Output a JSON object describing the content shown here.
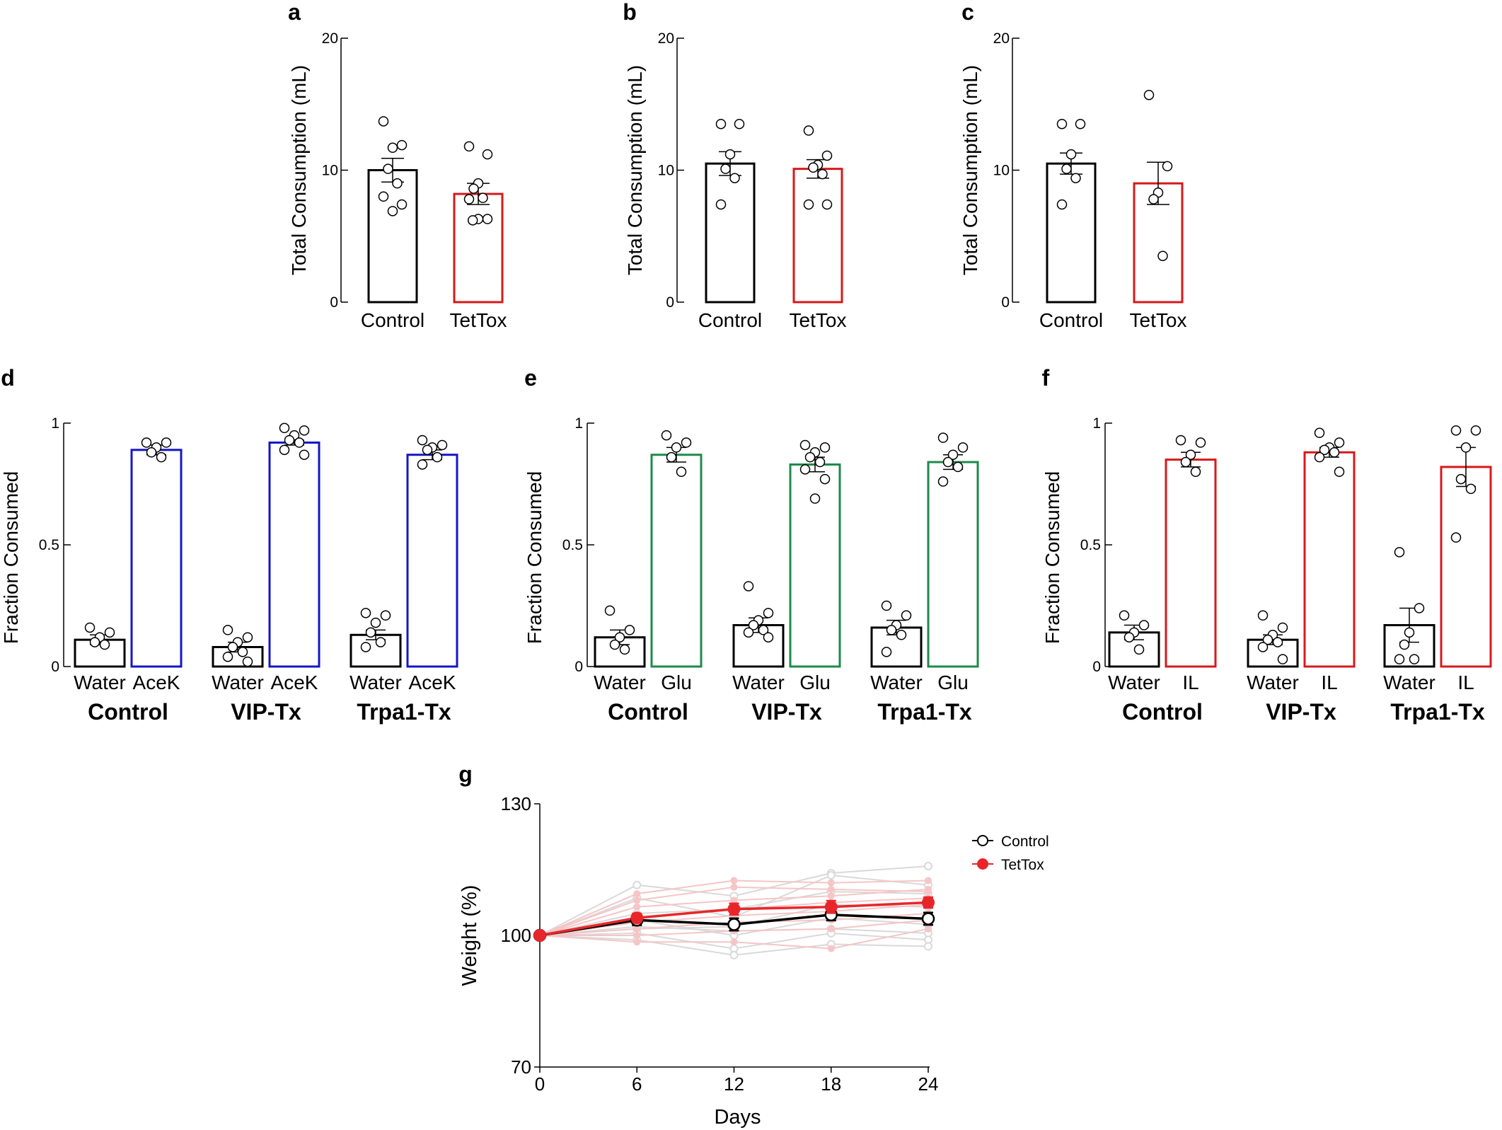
{
  "chart_data": [
    {
      "id": "a",
      "type": "bar",
      "panel": "a",
      "ylabel": "Total Consumption (mL)",
      "ylim": [
        0,
        20
      ],
      "yticks": [
        0,
        10,
        20
      ],
      "ytick_labels": [
        "0",
        "10",
        "20"
      ],
      "categories": [
        "Control",
        "TetTox"
      ],
      "bars": [
        {
          "label": "Control",
          "value": 10.0,
          "sem": 0.9,
          "color": "#000000",
          "points": [
            13.7,
            11.9,
            11.7,
            10.1,
            9.0,
            8.0,
            7.4,
            6.9
          ]
        },
        {
          "label": "TetTox",
          "value": 8.2,
          "sem": 0.8,
          "color": "#d7191c",
          "points": [
            11.8,
            11.2,
            9.0,
            8.6,
            7.9,
            7.8,
            6.3,
            6.3,
            6.2
          ]
        }
      ]
    },
    {
      "id": "b",
      "type": "bar",
      "panel": "b",
      "ylabel": "Total Consumption (mL)",
      "ylim": [
        0,
        20
      ],
      "yticks": [
        0,
        10,
        20
      ],
      "ytick_labels": [
        "0",
        "10",
        "20"
      ],
      "categories": [
        "Control",
        "TetTox"
      ],
      "bars": [
        {
          "label": "Control",
          "value": 10.5,
          "sem": 0.9,
          "color": "#000000",
          "points": [
            13.5,
            13.5,
            11.2,
            10.1,
            9.4,
            7.4
          ]
        },
        {
          "label": "TetTox",
          "value": 10.1,
          "sem": 0.7,
          "color": "#d7191c",
          "points": [
            13.0,
            11.1,
            10.4,
            10.2,
            9.7,
            7.4,
            7.4
          ]
        }
      ]
    },
    {
      "id": "c",
      "type": "bar",
      "panel": "c",
      "ylabel": "Total Consumption (mL)",
      "ylim": [
        0,
        20
      ],
      "yticks": [
        0,
        10,
        20
      ],
      "ytick_labels": [
        "0",
        "10",
        "20"
      ],
      "categories": [
        "Control",
        "TetTox"
      ],
      "bars": [
        {
          "label": "Control",
          "value": 10.5,
          "sem": 0.8,
          "color": "#000000",
          "points": [
            13.5,
            13.5,
            11.2,
            10.1,
            9.4,
            7.4
          ]
        },
        {
          "label": "TetTox",
          "value": 9.0,
          "sem": 1.6,
          "color": "#d7191c",
          "points": [
            15.7,
            10.3,
            8.3,
            7.8,
            3.5
          ]
        }
      ]
    },
    {
      "id": "d",
      "type": "bar",
      "panel": "d",
      "ylabel": "Fraction Consumed",
      "ylim": [
        0,
        1
      ],
      "yticks": [
        0,
        0.5,
        1
      ],
      "ytick_labels": [
        "0",
        "0.5",
        "1"
      ],
      "groups": [
        "Control",
        "VIP-Tx",
        "Trpa1-Tx"
      ],
      "bars": [
        {
          "group": "Control",
          "label": "Water",
          "value": 0.11,
          "sem": 0.02,
          "color": "#000000",
          "points": [
            0.16,
            0.14,
            0.12,
            0.1,
            0.09
          ]
        },
        {
          "group": "Control",
          "label": "AceK",
          "value": 0.89,
          "sem": 0.02,
          "color": "#1515c8",
          "points": [
            0.92,
            0.92,
            0.9,
            0.88,
            0.86
          ]
        },
        {
          "group": "VIP-Tx",
          "label": "Water",
          "value": 0.08,
          "sem": 0.02,
          "color": "#000000",
          "points": [
            0.15,
            0.12,
            0.1,
            0.08,
            0.06,
            0.04,
            0.02
          ]
        },
        {
          "group": "VIP-Tx",
          "label": "AceK",
          "value": 0.92,
          "sem": 0.01,
          "color": "#1515c8",
          "points": [
            0.98,
            0.97,
            0.95,
            0.93,
            0.92,
            0.89,
            0.87
          ]
        },
        {
          "group": "Trpa1-Tx",
          "label": "Water",
          "value": 0.13,
          "sem": 0.02,
          "color": "#000000",
          "points": [
            0.22,
            0.21,
            0.18,
            0.14,
            0.1,
            0.08
          ]
        },
        {
          "group": "Trpa1-Tx",
          "label": "AceK",
          "value": 0.87,
          "sem": 0.02,
          "color": "#1515c8",
          "points": [
            0.93,
            0.91,
            0.9,
            0.89,
            0.86,
            0.83
          ]
        }
      ]
    },
    {
      "id": "e",
      "type": "bar",
      "panel": "e",
      "ylabel": "Fraction Consumed",
      "ylim": [
        0,
        1
      ],
      "yticks": [
        0,
        0.5,
        1
      ],
      "ytick_labels": [
        "0",
        "0.5",
        "1"
      ],
      "groups": [
        "Control",
        "VIP-Tx",
        "Trpa1-Tx"
      ],
      "bars": [
        {
          "group": "Control",
          "label": "Water",
          "value": 0.12,
          "sem": 0.03,
          "color": "#000000",
          "points": [
            0.23,
            0.15,
            0.12,
            0.09,
            0.07
          ]
        },
        {
          "group": "Control",
          "label": "Glu",
          "value": 0.87,
          "sem": 0.03,
          "color": "#1e8a4a",
          "points": [
            0.95,
            0.92,
            0.9,
            0.86,
            0.8
          ]
        },
        {
          "group": "VIP-Tx",
          "label": "Water",
          "value": 0.17,
          "sem": 0.03,
          "color": "#000000",
          "points": [
            0.33,
            0.22,
            0.19,
            0.17,
            0.15,
            0.14,
            0.12
          ]
        },
        {
          "group": "VIP-Tx",
          "label": "Glu",
          "value": 0.83,
          "sem": 0.03,
          "color": "#1e8a4a",
          "points": [
            0.91,
            0.9,
            0.88,
            0.86,
            0.84,
            0.81,
            0.77,
            0.69
          ]
        },
        {
          "group": "Trpa1-Tx",
          "label": "Water",
          "value": 0.16,
          "sem": 0.03,
          "color": "#000000",
          "points": [
            0.25,
            0.21,
            0.17,
            0.15,
            0.13,
            0.06
          ]
        },
        {
          "group": "Trpa1-Tx",
          "label": "Glu",
          "value": 0.84,
          "sem": 0.03,
          "color": "#1e8a4a",
          "points": [
            0.94,
            0.9,
            0.87,
            0.84,
            0.82,
            0.76
          ]
        }
      ]
    },
    {
      "id": "f",
      "type": "bar",
      "panel": "f",
      "ylabel": "Fraction Consumed",
      "ylim": [
        0,
        1
      ],
      "yticks": [
        0,
        0.5,
        1
      ],
      "ytick_labels": [
        "0",
        "0.5",
        "1"
      ],
      "groups": [
        "Control",
        "VIP-Tx",
        "Trpa1-Tx"
      ],
      "bars": [
        {
          "group": "Control",
          "label": "Water",
          "value": 0.14,
          "sem": 0.03,
          "color": "#000000",
          "points": [
            0.21,
            0.17,
            0.14,
            0.12,
            0.07
          ]
        },
        {
          "group": "Control",
          "label": "IL",
          "value": 0.85,
          "sem": 0.03,
          "color": "#d7191c",
          "points": [
            0.93,
            0.92,
            0.87,
            0.84,
            0.8
          ]
        },
        {
          "group": "VIP-Tx",
          "label": "Water",
          "value": 0.11,
          "sem": 0.02,
          "color": "#000000",
          "points": [
            0.21,
            0.16,
            0.13,
            0.11,
            0.1,
            0.08,
            0.03
          ]
        },
        {
          "group": "VIP-Tx",
          "label": "IL",
          "value": 0.88,
          "sem": 0.02,
          "color": "#d7191c",
          "points": [
            0.96,
            0.92,
            0.9,
            0.89,
            0.88,
            0.86,
            0.8
          ]
        },
        {
          "group": "Trpa1-Tx",
          "label": "Water",
          "value": 0.17,
          "sem": 0.07,
          "color": "#000000",
          "points": [
            0.47,
            0.24,
            0.14,
            0.09,
            0.03,
            0.03
          ]
        },
        {
          "group": "Trpa1-Tx",
          "label": "IL",
          "value": 0.82,
          "sem": 0.08,
          "color": "#d7191c",
          "points": [
            0.97,
            0.97,
            0.9,
            0.77,
            0.73,
            0.53
          ]
        }
      ]
    },
    {
      "id": "g",
      "type": "line",
      "panel": "g",
      "xlabel": "Days",
      "ylabel": "Weight (%)",
      "xlim": [
        0,
        24
      ],
      "ylim": [
        70,
        130
      ],
      "xticks": [
        0,
        6,
        12,
        18,
        24
      ],
      "xtick_labels": [
        "0",
        "6",
        "12",
        "18",
        "24"
      ],
      "yticks": [
        70,
        100,
        130
      ],
      "ytick_labels": [
        "70",
        "100",
        "130"
      ],
      "x": [
        0,
        6,
        12,
        18,
        24
      ],
      "series": [
        {
          "name": "Control",
          "color": "#000000",
          "marker": "open-circle",
          "mean": [
            100,
            103.5,
            102.5,
            104.7,
            103.8
          ],
          "sem": [
            0,
            1.2,
            1.4,
            1.3,
            1.4
          ],
          "individual": [
            [
              100,
              111.5,
              109.0,
              114.2,
              115.8
            ],
            [
              100,
              108.5,
              104.2,
              113.7,
              111.5
            ],
            [
              100,
              105.0,
              106.0,
              110.0,
              109.5
            ],
            [
              100,
              101.5,
              102.0,
              107.0,
              106.5
            ],
            [
              100,
              102.0,
              101.0,
              101.5,
              100.5
            ],
            [
              100,
              100.5,
              97.0,
              100.5,
              99.0
            ],
            [
              100,
              99.0,
              95.5,
              98.0,
              97.5
            ],
            [
              100,
              103.5,
              100.0,
              104.0,
              102.5
            ]
          ]
        },
        {
          "name": "TetTox",
          "color": "#e8262a",
          "marker": "filled-circle",
          "mean": [
            100,
            104.0,
            106.0,
            106.5,
            107.5
          ],
          "sem": [
            0,
            1.0,
            1.3,
            1.4,
            1.2
          ],
          "individual": [
            [
              100,
              109.5,
              112.5,
              112.0,
              112.5
            ],
            [
              100,
              108.0,
              111.0,
              110.5,
              110.0
            ],
            [
              100,
              106.5,
              108.0,
              109.0,
              110.5
            ],
            [
              100,
              104.0,
              106.0,
              107.5,
              108.5
            ],
            [
              100,
              103.0,
              104.5,
              105.5,
              107.0
            ],
            [
              100,
              101.5,
              103.0,
              103.5,
              105.0
            ],
            [
              100,
              100.0,
              101.0,
              101.5,
              103.5
            ],
            [
              100,
              98.5,
              98.5,
              97.0,
              101.5
            ]
          ]
        }
      ],
      "legend": [
        "Control",
        "TetTox"
      ]
    }
  ]
}
